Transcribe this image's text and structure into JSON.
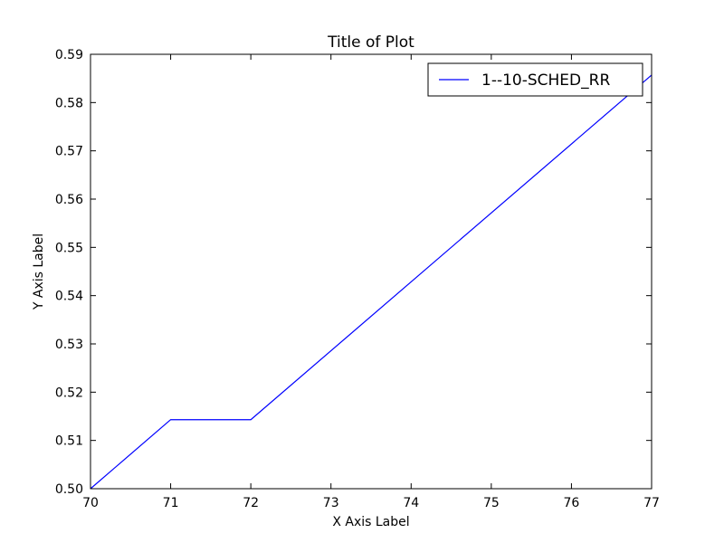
{
  "chart_data": {
    "type": "line",
    "title": "Title of Plot",
    "xlabel": "X Axis Label",
    "ylabel": "Y Axis Label",
    "xlim": [
      70,
      77
    ],
    "ylim": [
      0.5,
      0.59
    ],
    "xticks": [
      70,
      71,
      72,
      73,
      74,
      75,
      76,
      77
    ],
    "yticks": [
      0.5,
      0.51,
      0.52,
      0.53,
      0.54,
      0.55,
      0.56,
      0.57,
      0.58,
      0.59
    ],
    "xtick_labels": [
      "70",
      "71",
      "72",
      "73",
      "74",
      "75",
      "76",
      "77"
    ],
    "ytick_labels": [
      "0.50",
      "0.51",
      "0.52",
      "0.53",
      "0.54",
      "0.55",
      "0.56",
      "0.57",
      "0.58",
      "0.59"
    ],
    "grid": false,
    "legend_position": "top-right",
    "series": [
      {
        "name": "1--10-SCHED_RR",
        "color": "#0000ff",
        "x": [
          70,
          71,
          72,
          77
        ],
        "y": [
          0.5,
          0.5143,
          0.5143,
          0.5857
        ]
      }
    ]
  }
}
